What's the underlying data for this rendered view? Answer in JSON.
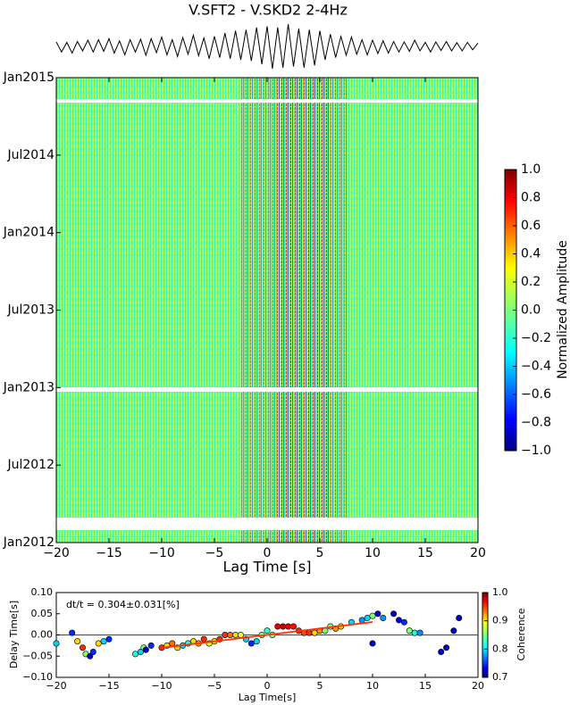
{
  "chart_data": [
    {
      "type": "line",
      "title": "V.SFT2 - V.SKD2 2-4Hz",
      "color": "#000000",
      "xlim": [
        -20,
        20
      ],
      "x": [
        -20,
        -19.5,
        -19,
        -18.5,
        -18,
        -17.5,
        -17,
        -16.5,
        -16,
        -15.5,
        -15,
        -14.5,
        -14,
        -13.5,
        -13,
        -12.5,
        -12,
        -11.5,
        -11,
        -10.5,
        -10,
        -9.5,
        -9,
        -8.5,
        -8,
        -7.5,
        -7,
        -6.5,
        -6,
        -5.5,
        -5,
        -4.5,
        -4,
        -3.5,
        -3,
        -2.5,
        -2,
        -1.5,
        -1,
        -0.5,
        0,
        0.5,
        1,
        1.5,
        2,
        2.5,
        3,
        3.5,
        4,
        4.5,
        5,
        5.5,
        6,
        6.5,
        7,
        7.5,
        8,
        8.5,
        9,
        9.5,
        10,
        10.5,
        11,
        11.5,
        12,
        12.5,
        13,
        13.5,
        14,
        14.5,
        15,
        15.5,
        16,
        16.5,
        17,
        17.5,
        18,
        18.5,
        19,
        19.5,
        20
      ],
      "values": [
        0.2,
        -0.25,
        0.18,
        -0.3,
        0.22,
        -0.2,
        0.28,
        -0.25,
        0.3,
        -0.22,
        0.35,
        -0.3,
        0.25,
        -0.38,
        0.3,
        -0.25,
        0.32,
        -0.4,
        0.35,
        -0.28,
        0.42,
        -0.38,
        0.3,
        -0.45,
        0.4,
        -0.35,
        0.5,
        -0.42,
        0.38,
        -0.55,
        0.45,
        -0.5,
        0.6,
        -0.55,
        0.7,
        -0.6,
        0.75,
        -0.65,
        0.85,
        -0.8,
        0.9,
        -1.0,
        0.85,
        -0.95,
        1.0,
        -0.9,
        0.8,
        -0.95,
        0.75,
        -0.85,
        0.7,
        -0.6,
        0.55,
        -0.5,
        0.45,
        -0.4,
        0.42,
        -0.35,
        0.3,
        -0.38,
        0.28,
        -0.32,
        0.25,
        -0.3,
        0.22,
        -0.25,
        0.2,
        -0.22,
        0.28,
        -0.2,
        0.18,
        -0.25,
        0.2,
        -0.18,
        0.22,
        -0.2,
        0.17,
        -0.2,
        0.18,
        -0.15,
        0.15
      ]
    },
    {
      "type": "heatmap",
      "xlabel": "Lag Time [s]",
      "xlim": [
        -20,
        20
      ],
      "xticks": [
        {
          "value": -20,
          "label": "−20"
        },
        {
          "value": -15,
          "label": "−15"
        },
        {
          "value": -10,
          "label": "−10"
        },
        {
          "value": -5,
          "label": "−5"
        },
        0,
        5,
        10,
        15,
        20
      ],
      "ylim": [
        "2012-01",
        "2015-01"
      ],
      "yticks": [
        {
          "value": "2012-01",
          "label": "Jan2012"
        },
        {
          "value": "2012-07",
          "label": "Jul2012"
        },
        {
          "value": "2013-01",
          "label": "Jan2013"
        },
        {
          "value": "2013-07",
          "label": "Jul2013"
        },
        {
          "value": "2014-01",
          "label": "Jan2014"
        },
        {
          "value": "2014-07",
          "label": "Jul2014"
        },
        {
          "value": "2015-01",
          "label": "Jan2015"
        }
      ],
      "colorbar": {
        "label": "Normalized Amplitude",
        "lim": [
          -1,
          1
        ],
        "ticks": [
          {
            "value": -1,
            "label": "−1.0"
          },
          {
            "value": -0.8,
            "label": "−0.8"
          },
          {
            "value": -0.6,
            "label": "−0.6"
          },
          {
            "value": -0.4,
            "label": "−0.4"
          },
          {
            "value": -0.2,
            "label": "−0.2"
          },
          {
            "value": 0,
            "label": "0.0"
          },
          0.2,
          0.4,
          0.6,
          0.8,
          {
            "value": 1,
            "label": "1.0"
          }
        ]
      }
    },
    {
      "type": "scatter",
      "xlabel": "Lag Time[s]",
      "ylabel": "Delay Time[s]",
      "annotation": "dt/t = 0.304±0.031[%]",
      "xlim": [
        -20,
        20
      ],
      "xticks": [
        {
          "value": -20,
          "label": "−20"
        },
        {
          "value": -15,
          "label": "−15"
        },
        {
          "value": -10,
          "label": "−10"
        },
        {
          "value": -5,
          "label": "−5"
        },
        0,
        5,
        10,
        15,
        20
      ],
      "ylim": [
        -0.1,
        0.1
      ],
      "yticks": [
        {
          "value": -0.1,
          "label": "−0.10"
        },
        {
          "value": -0.05,
          "label": "−0.05"
        },
        {
          "value": 0,
          "label": "0.00"
        },
        0.05,
        {
          "value": 0.1,
          "label": "0.10"
        }
      ],
      "x": [
        -20,
        -18.5,
        -18,
        -17.5,
        -17.2,
        -16.8,
        -16.5,
        -16,
        -15.5,
        -15,
        -12.5,
        -12,
        -11.7,
        -11.5,
        -11,
        -10,
        -9.5,
        -9,
        -8.5,
        -8,
        -7.5,
        -7,
        -6.5,
        -6,
        -5.5,
        -5,
        -4.5,
        -4,
        -3.5,
        -3,
        -2.5,
        -2,
        -1.5,
        -1,
        -0.5,
        0,
        0.5,
        1,
        1.5,
        2,
        2.5,
        3,
        3.5,
        4,
        4.5,
        5,
        5.5,
        6,
        6.5,
        7,
        8,
        9,
        9.5,
        10,
        10.5,
        11,
        12,
        12.5,
        13,
        13.5,
        14,
        14.5,
        16.5,
        17,
        17.7,
        18.2,
        10
      ],
      "values": [
        -0.02,
        0.005,
        -0.015,
        -0.03,
        -0.045,
        -0.05,
        -0.04,
        -0.02,
        -0.015,
        -0.01,
        -0.045,
        -0.04,
        -0.03,
        -0.035,
        -0.025,
        -0.03,
        -0.025,
        -0.02,
        -0.03,
        -0.025,
        -0.02,
        -0.015,
        -0.02,
        -0.01,
        -0.02,
        -0.015,
        -0.01,
        0,
        0,
        0,
        0,
        -0.01,
        -0.02,
        -0.015,
        0,
        0.01,
        0,
        0.02,
        0.02,
        0.02,
        0.02,
        0.01,
        0.005,
        0.005,
        0.005,
        0.01,
        0.01,
        0.02,
        0.015,
        0.02,
        0.03,
        0.035,
        0.04,
        0.045,
        0.05,
        0.04,
        0.05,
        0.035,
        0.03,
        0.01,
        0.005,
        0.005,
        -0.04,
        -0.03,
        0.01,
        0.04,
        -0.02
      ],
      "coherence": [
        0.8,
        0.75,
        0.9,
        0.95,
        0.85,
        0.72,
        0.75,
        0.9,
        0.8,
        0.75,
        0.82,
        0.8,
        0.85,
        0.72,
        0.75,
        0.95,
        0.9,
        0.93,
        0.9,
        0.8,
        0.82,
        0.9,
        0.92,
        0.95,
        0.88,
        0.9,
        0.95,
        0.95,
        0.93,
        0.9,
        0.88,
        0.8,
        0.75,
        0.8,
        0.85,
        0.83,
        0.85,
        0.97,
        0.98,
        0.97,
        0.96,
        0.95,
        0.94,
        0.95,
        0.9,
        0.92,
        0.85,
        0.85,
        0.92,
        0.9,
        0.8,
        0.78,
        0.8,
        0.85,
        0.73,
        0.78,
        0.72,
        0.73,
        0.75,
        0.85,
        0.82,
        0.78,
        0.72,
        0.72,
        0.72,
        0.72,
        0.72
      ],
      "fit": {
        "x": [
          -10,
          10
        ],
        "values": [
          -0.0304,
          0.0304
        ],
        "color": "#ff3300"
      },
      "colorbar": {
        "label": "Coherence",
        "lim": [
          0.7,
          1
        ],
        "ticks": [
          0.7,
          0.8,
          0.9,
          {
            "value": 1,
            "label": "1.0"
          }
        ]
      }
    }
  ]
}
